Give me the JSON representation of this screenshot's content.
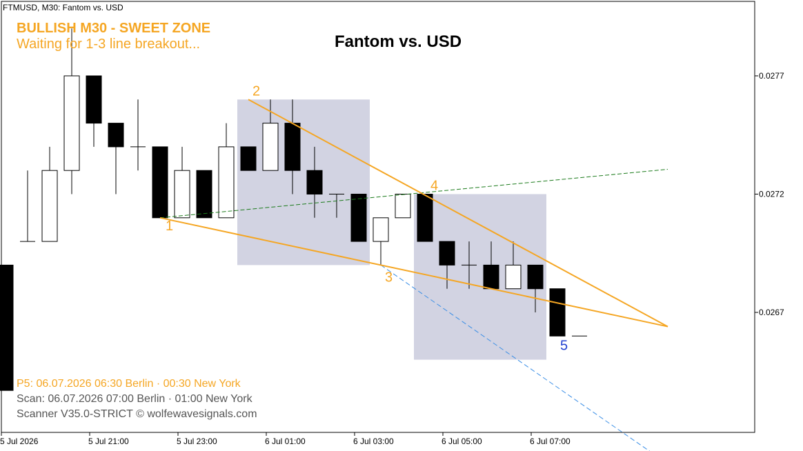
{
  "header": {
    "symbol_label": "FTMUSD, M30:  Fantom vs. USD",
    "title": "Fantom vs. USD"
  },
  "signal": {
    "title": "BULLISH M30 - SWEET ZONE",
    "subtitle": "Waiting for 1-3 line breakout..."
  },
  "footer": {
    "p5": "P5:    06.07.2026  06:30 Berlin · 00:30 New York",
    "scan": "Scan:  06.07.2026  07:00 Berlin · 01:00 New York",
    "scanner": "Scanner V35.0-STRICT   © wolfewavesignals.com"
  },
  "colors": {
    "accent": "#f5a623",
    "bull_candle": "#ffffff",
    "bear_candle": "#000000",
    "zone": "#d2d3e2",
    "target_line": "#3a8ee6",
    "trend_line": "#1a7a1a",
    "point5": "#1f3fd0"
  },
  "chart_data": {
    "type": "candlestick",
    "title": "Fantom vs. USD",
    "timeframe": "M30",
    "y_ticks": [
      0.0267,
      0.0272,
      0.0277
    ],
    "y_tick_labels": [
      "0.0267",
      "0.0272",
      "0.0277"
    ],
    "x_tick_labels": [
      {
        "bar": 0,
        "label": "5 Jul 2026"
      },
      {
        "bar": 4,
        "label": "5 Jul 21:00"
      },
      {
        "bar": 8,
        "label": "5 Jul 23:00"
      },
      {
        "bar": 12,
        "label": "6 Jul 01:00"
      },
      {
        "bar": 16,
        "label": "6 Jul 03:00"
      },
      {
        "bar": 20,
        "label": "6 Jul 05:00"
      },
      {
        "bar": 24,
        "label": "6 Jul 07:00"
      }
    ],
    "candles": [
      {
        "o": 0.0269,
        "h": 0.0269,
        "l": 0.02637,
        "c": 0.02637
      },
      {
        "o": 0.027,
        "h": 0.0273,
        "l": 0.027,
        "c": 0.027
      },
      {
        "o": 0.027,
        "h": 0.0274,
        "l": 0.027,
        "c": 0.0273
      },
      {
        "o": 0.0273,
        "h": 0.0279,
        "l": 0.0272,
        "c": 0.0277
      },
      {
        "o": 0.0277,
        "h": 0.0277,
        "l": 0.0274,
        "c": 0.0275
      },
      {
        "o": 0.0275,
        "h": 0.0275,
        "l": 0.0272,
        "c": 0.0274
      },
      {
        "o": 0.0274,
        "h": 0.0276,
        "l": 0.0273,
        "c": 0.0274
      },
      {
        "o": 0.0274,
        "h": 0.0274,
        "l": 0.0271,
        "c": 0.0271
      },
      {
        "o": 0.0271,
        "h": 0.0274,
        "l": 0.0271,
        "c": 0.0273
      },
      {
        "o": 0.0273,
        "h": 0.0273,
        "l": 0.0271,
        "c": 0.0271
      },
      {
        "o": 0.0271,
        "h": 0.0275,
        "l": 0.0271,
        "c": 0.0274
      },
      {
        "o": 0.0274,
        "h": 0.0274,
        "l": 0.0273,
        "c": 0.0273
      },
      {
        "o": 0.0273,
        "h": 0.0276,
        "l": 0.0273,
        "c": 0.0275
      },
      {
        "o": 0.0275,
        "h": 0.0276,
        "l": 0.0272,
        "c": 0.0273
      },
      {
        "o": 0.0273,
        "h": 0.0274,
        "l": 0.0271,
        "c": 0.0272
      },
      {
        "o": 0.0272,
        "h": 0.0272,
        "l": 0.0271,
        "c": 0.0272
      },
      {
        "o": 0.0272,
        "h": 0.0272,
        "l": 0.027,
        "c": 0.027
      },
      {
        "o": 0.027,
        "h": 0.0271,
        "l": 0.0269,
        "c": 0.0271
      },
      {
        "o": 0.0271,
        "h": 0.0272,
        "l": 0.0271,
        "c": 0.0272
      },
      {
        "o": 0.0272,
        "h": 0.0272,
        "l": 0.027,
        "c": 0.027
      },
      {
        "o": 0.027,
        "h": 0.027,
        "l": 0.0268,
        "c": 0.0269
      },
      {
        "o": 0.0269,
        "h": 0.027,
        "l": 0.0268,
        "c": 0.0269
      },
      {
        "o": 0.0269,
        "h": 0.027,
        "l": 0.0268,
        "c": 0.0268
      },
      {
        "o": 0.0268,
        "h": 0.027,
        "l": 0.0268,
        "c": 0.0269
      },
      {
        "o": 0.0269,
        "h": 0.0269,
        "l": 0.0267,
        "c": 0.0268
      },
      {
        "o": 0.0268,
        "h": 0.0268,
        "l": 0.0266,
        "c": 0.0266
      },
      {
        "o": 0.0266,
        "h": 0.0266,
        "l": 0.0266,
        "c": 0.0266
      }
    ],
    "wolfe_points": [
      {
        "label": "1",
        "bar": 7,
        "price": 0.0271
      },
      {
        "label": "2",
        "bar": 11,
        "price": 0.0276
      },
      {
        "label": "3",
        "bar": 17,
        "price": 0.0269
      },
      {
        "label": "4",
        "bar": 19,
        "price": 0.0272
      },
      {
        "label": "5",
        "bar": 25,
        "price": 0.0266
      }
    ],
    "wave_lines": [
      {
        "from": {
          "bar": 7,
          "price": 0.0271
        },
        "to": {
          "bar": 30,
          "price": 0.02664
        },
        "style": "solid"
      },
      {
        "from": {
          "bar": 11,
          "price": 0.0276
        },
        "to": {
          "bar": 30,
          "price": 0.02664
        },
        "style": "solid"
      }
    ],
    "trend_line": {
      "from": {
        "bar": 7,
        "price": 0.0271
      },
      "to": {
        "bar": 30,
        "price": 0.027305
      },
      "style": "dashed"
    },
    "target_line": {
      "from": {
        "bar": 17,
        "price": 0.0269
      },
      "to": {
        "bar": 30,
        "price": 0.02606
      },
      "style": "dashed"
    },
    "zones": [
      {
        "bar_from": 10.5,
        "bar_to": 16.5,
        "price_top": 0.0276,
        "price_bottom": 0.0269
      },
      {
        "bar_from": 18.5,
        "bar_to": 24.5,
        "price_top": 0.0272,
        "price_bottom": 0.0265
      }
    ]
  }
}
